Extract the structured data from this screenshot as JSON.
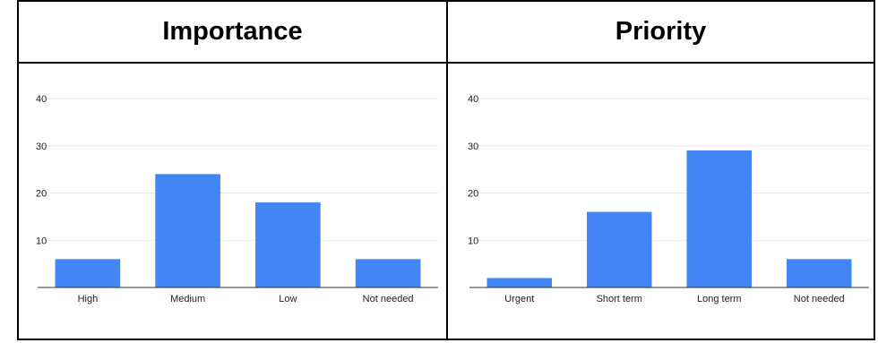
{
  "chart_data": [
    {
      "type": "bar",
      "title": "Importance",
      "categories": [
        "High",
        "Medium",
        "Low",
        "Not needed"
      ],
      "values": [
        6,
        24,
        18,
        6
      ],
      "ylim": [
        0,
        40
      ],
      "yticks": [
        10,
        20,
        30,
        40
      ],
      "bar_color": "#4285f4",
      "grid": true
    },
    {
      "type": "bar",
      "title": "Priority",
      "categories": [
        "Urgent",
        "Short term",
        "Long term",
        "Not needed"
      ],
      "values": [
        2,
        16,
        29,
        6
      ],
      "ylim": [
        0,
        40
      ],
      "yticks": [
        10,
        20,
        30,
        40
      ],
      "bar_color": "#4285f4",
      "grid": true
    }
  ]
}
